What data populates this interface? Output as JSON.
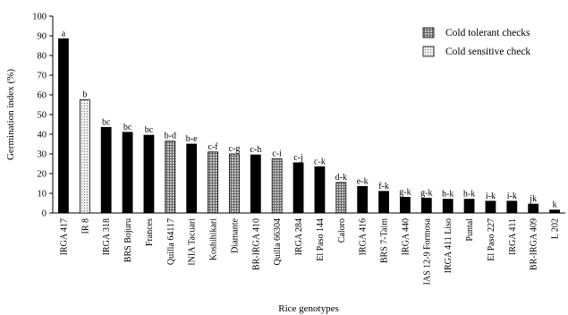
{
  "chart_data": {
    "type": "bar",
    "title": "",
    "xlabel": "Rice genotypes",
    "ylabel": "Germination index (%)",
    "ylim": [
      0,
      100
    ],
    "yticks": [
      0,
      10,
      20,
      30,
      40,
      50,
      60,
      70,
      80,
      90,
      100
    ],
    "grid": false,
    "legend_position": "top-right",
    "legend": [
      {
        "label": "Cold tolerant checks",
        "pattern": "grid-hatch"
      },
      {
        "label": "Cold sensitive check",
        "pattern": "dots"
      }
    ],
    "colors": {
      "default": "#000000",
      "tolerant_fill": "#b8b8b8",
      "sensitive_fill": "#dedede"
    },
    "categories": [
      "IRGA 417",
      "IR 8",
      "IRGA 318",
      "BRS Bojuru",
      "Frances",
      "Quilla 64117",
      "INIA Tacuari",
      "Koshihikari",
      "Diamante",
      "BR-IRGA 410",
      "Quilla 66304",
      "IRGA 284",
      "El Paso 144",
      "Caloro",
      "IRGA 416",
      "BRS 7-Taim",
      "IRGA 440",
      "IAS 12-9 Formosa",
      "IRGA 411 Liso",
      "Puntal",
      "El Paso 227",
      "IRGA 411",
      "BR-IRGA 409",
      "L 202"
    ],
    "values": [
      88.5,
      57.5,
      43.5,
      41,
      39.5,
      36.5,
      35,
      31,
      30,
      29.5,
      27.5,
      25.5,
      23.5,
      15.5,
      13.5,
      11,
      8,
      7.5,
      7,
      7,
      6,
      6,
      4.5,
      1.5
    ],
    "groups": [
      "default",
      "sensitive",
      "default",
      "default",
      "default",
      "tolerant",
      "default",
      "tolerant",
      "tolerant",
      "default",
      "tolerant",
      "default",
      "default",
      "tolerant",
      "default",
      "default",
      "default",
      "default",
      "default",
      "default",
      "default",
      "default",
      "default",
      "default"
    ],
    "labels": [
      "a",
      "b",
      "bc",
      "bc",
      "bc",
      "b-d",
      "b-e",
      "c-f",
      "c-g",
      "c-h",
      "c-i",
      "c-j",
      "c-k",
      "d-k",
      "e-k",
      "f-k",
      "g-k",
      "g-k",
      "h-k",
      "h-k",
      "i-k",
      "i-k",
      "jk",
      "k"
    ]
  }
}
